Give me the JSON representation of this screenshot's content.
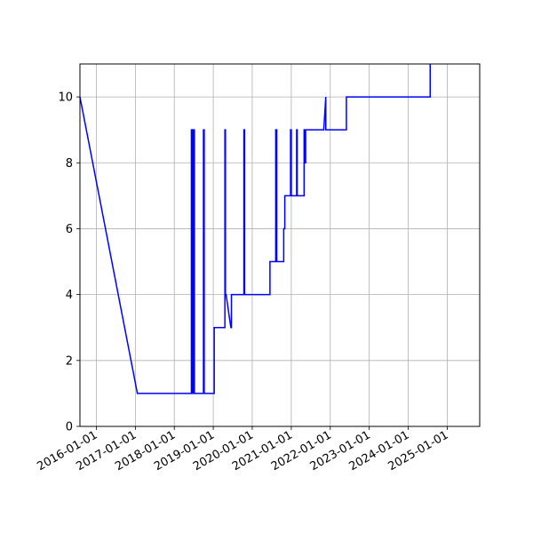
{
  "chart_data": {
    "type": "line",
    "title": "",
    "xlabel": "",
    "ylabel": "",
    "grid": true,
    "x_type": "date",
    "xlim": [
      "2015-08-01",
      "2025-11-01"
    ],
    "ylim": [
      0,
      11
    ],
    "x_ticks": [
      "2016-01-01",
      "2017-01-01",
      "2018-01-01",
      "2019-01-01",
      "2020-01-01",
      "2021-01-01",
      "2022-01-01",
      "2023-01-01",
      "2024-01-01",
      "2025-01-01"
    ],
    "y_ticks": [
      0,
      2,
      4,
      6,
      8,
      10
    ],
    "series": [
      {
        "color": "#0000ff",
        "x": [
          "2015-08-01",
          "2017-01-20",
          "2018-06-10",
          "2018-06-10",
          "2018-06-14",
          "2018-06-14",
          "2018-06-20",
          "2018-06-20",
          "2018-06-25",
          "2018-06-25",
          "2018-07-02",
          "2018-07-02",
          "2018-07-08",
          "2018-07-08",
          "2018-10-01",
          "2018-10-01",
          "2018-10-08",
          "2018-10-08",
          "2019-01-10",
          "2019-01-10",
          "2019-04-20",
          "2019-04-20",
          "2019-04-25",
          "2019-04-25",
          "2019-05-01",
          "2019-05-01",
          "2019-06-15",
          "2019-06-20",
          "2019-06-20",
          "2019-10-15",
          "2019-10-15",
          "2019-10-22",
          "2019-10-22",
          "2020-06-15",
          "2020-06-15",
          "2020-08-08",
          "2020-08-08",
          "2020-08-11",
          "2020-08-11",
          "2020-08-15",
          "2020-08-15",
          "2020-08-18",
          "2020-08-18",
          "2020-10-22",
          "2020-10-22",
          "2020-11-01",
          "2020-11-01",
          "2020-12-25",
          "2020-12-25",
          "2021-01-01",
          "2021-01-01",
          "2021-02-20",
          "2021-02-20",
          "2021-02-25",
          "2021-02-25",
          "2021-05-01",
          "2021-05-01",
          "2021-05-06",
          "2021-05-06",
          "2021-05-15",
          "2021-05-15",
          "2021-05-25",
          "2021-05-25",
          "2021-11-01",
          "2021-11-20",
          "2021-11-20",
          "2022-06-01",
          "2022-06-01",
          "2024-07-25",
          "2024-07-25"
        ],
        "y": [
          10,
          1,
          1,
          9,
          9,
          1,
          1,
          9,
          9,
          1,
          1,
          9,
          9,
          1,
          1,
          9,
          9,
          1,
          1,
          3,
          3,
          9,
          9,
          4,
          4,
          4,
          3,
          3,
          4,
          4,
          9,
          9,
          4,
          4,
          5,
          5,
          9,
          9,
          5,
          5,
          9,
          9,
          5,
          5,
          6,
          6,
          7,
          7,
          9,
          9,
          7,
          7,
          9,
          9,
          7,
          7,
          9,
          9,
          8,
          8,
          9,
          9,
          9,
          9,
          10,
          9,
          9,
          10,
          10,
          11
        ]
      }
    ]
  }
}
